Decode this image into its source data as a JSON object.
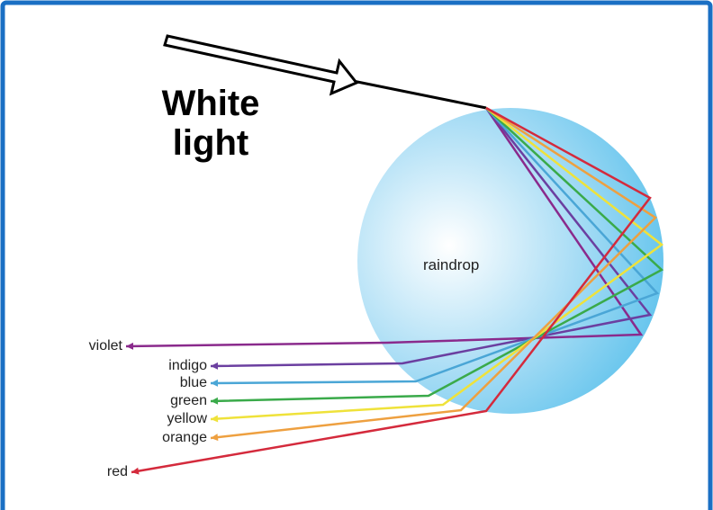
{
  "title": {
    "lines": [
      "White",
      "light"
    ]
  },
  "drop": {
    "label": "raindrop"
  },
  "rays": [
    {
      "label": "violet",
      "color": "#8a2a8c"
    },
    {
      "label": "indigo",
      "color": "#6b3fa0"
    },
    {
      "label": "blue",
      "color": "#4aa6d6"
    },
    {
      "label": "green",
      "color": "#3aaa4a"
    },
    {
      "label": "yellow",
      "color": "#efe23a"
    },
    {
      "label": "orange",
      "color": "#eea040"
    },
    {
      "label": "red",
      "color": "#d42a3c"
    }
  ]
}
